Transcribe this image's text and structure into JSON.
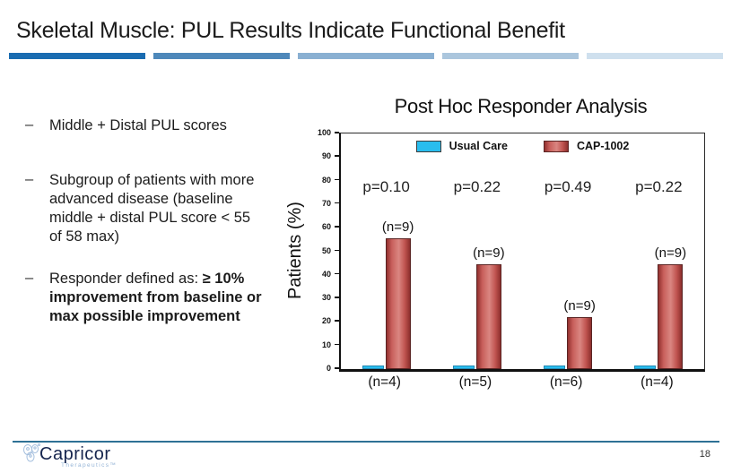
{
  "slide": {
    "title": "Skeletal Muscle: PUL Results Indicate Functional Benefit",
    "accent_colors": [
      "#1a6cb1",
      "#4e88ba",
      "#8ab0d2",
      "#abc6dd",
      "#cfe0ee"
    ],
    "page_number": "18",
    "footer_line_color": "#2e7195"
  },
  "bullets": [
    {
      "marker": "–",
      "text": "Middle + Distal PUL scores",
      "bold_text": ""
    },
    {
      "marker": "–",
      "text": "Subgroup of patients with more advanced disease (baseline middle + distal PUL score < 55 of 58 max)",
      "bold_text": ""
    },
    {
      "marker": "–",
      "text": "Responder defined as:",
      "bold_text": "≥ 10% improvement from baseline or max possible improvement"
    }
  ],
  "logo": {
    "name": "Capricor",
    "subtext": "Therapeutics™"
  },
  "chart_data": {
    "type": "bar",
    "title": "Post Hoc Responder Analysis",
    "ylabel": "Patients (%)",
    "ylim": [
      0,
      100
    ],
    "ytick_step": 10,
    "grid": false,
    "legend_position": "top-inside",
    "categories": [
      "(n=4)",
      "(n=5)",
      "(n=6)",
      "(n=4)"
    ],
    "series": [
      {
        "name": "Usual Care",
        "color": "#29bdee",
        "values": [
          1,
          1,
          1,
          1
        ]
      },
      {
        "name": "CAP-1002",
        "color": "#c0504d",
        "values": [
          55.6,
          44.4,
          22.2,
          44.4
        ],
        "bar_labels": [
          "(n=9)",
          "(n=9)",
          "(n=9)",
          "(n=9)"
        ]
      }
    ],
    "p_values": [
      "p=0.10",
      "p=0.22",
      "p=0.49",
      "p=0.22"
    ]
  }
}
